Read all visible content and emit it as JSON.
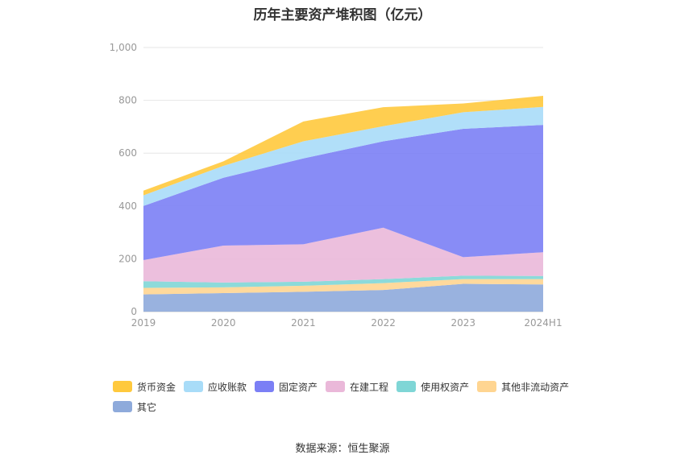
{
  "chart_data": {
    "type": "area",
    "stacked": true,
    "title": "历年主要资产堆积图（亿元）",
    "categories": [
      "2019",
      "2020",
      "2021",
      "2022",
      "2023",
      "2024H1"
    ],
    "yticks": [
      "0",
      "200",
      "400",
      "600",
      "800",
      "1,000"
    ],
    "ylim": [
      0,
      1000
    ],
    "grid": true,
    "legend_position": "bottom-left",
    "series": [
      {
        "name": "其它",
        "color": "#8eaadb",
        "values": [
          65,
          70,
          75,
          82,
          105,
          103
        ]
      },
      {
        "name": "其他非流动资产",
        "color": "#ffd591",
        "values": [
          25,
          22,
          23,
          26,
          18,
          20
        ]
      },
      {
        "name": "使用权资产",
        "color": "#7fd6d6",
        "values": [
          25,
          18,
          15,
          15,
          13,
          12
        ]
      },
      {
        "name": "在建工程",
        "color": "#eab8d9",
        "values": [
          80,
          140,
          142,
          195,
          70,
          90
        ]
      },
      {
        "name": "固定资产",
        "color": "#7b7ff5",
        "values": [
          205,
          257,
          325,
          327,
          486,
          482
        ]
      },
      {
        "name": "应收账款",
        "color": "#a8dcf8",
        "values": [
          40,
          45,
          65,
          57,
          63,
          68
        ]
      },
      {
        "name": "货币资金",
        "color": "#ffc93d",
        "values": [
          18,
          17,
          75,
          72,
          33,
          42
        ]
      }
    ],
    "legend_order": [
      "货币资金",
      "应收账款",
      "固定资产",
      "在建工程",
      "使用权资产",
      "其他非流动资产",
      "其它"
    ]
  },
  "footer": {
    "source": "数据来源：恒生聚源"
  }
}
